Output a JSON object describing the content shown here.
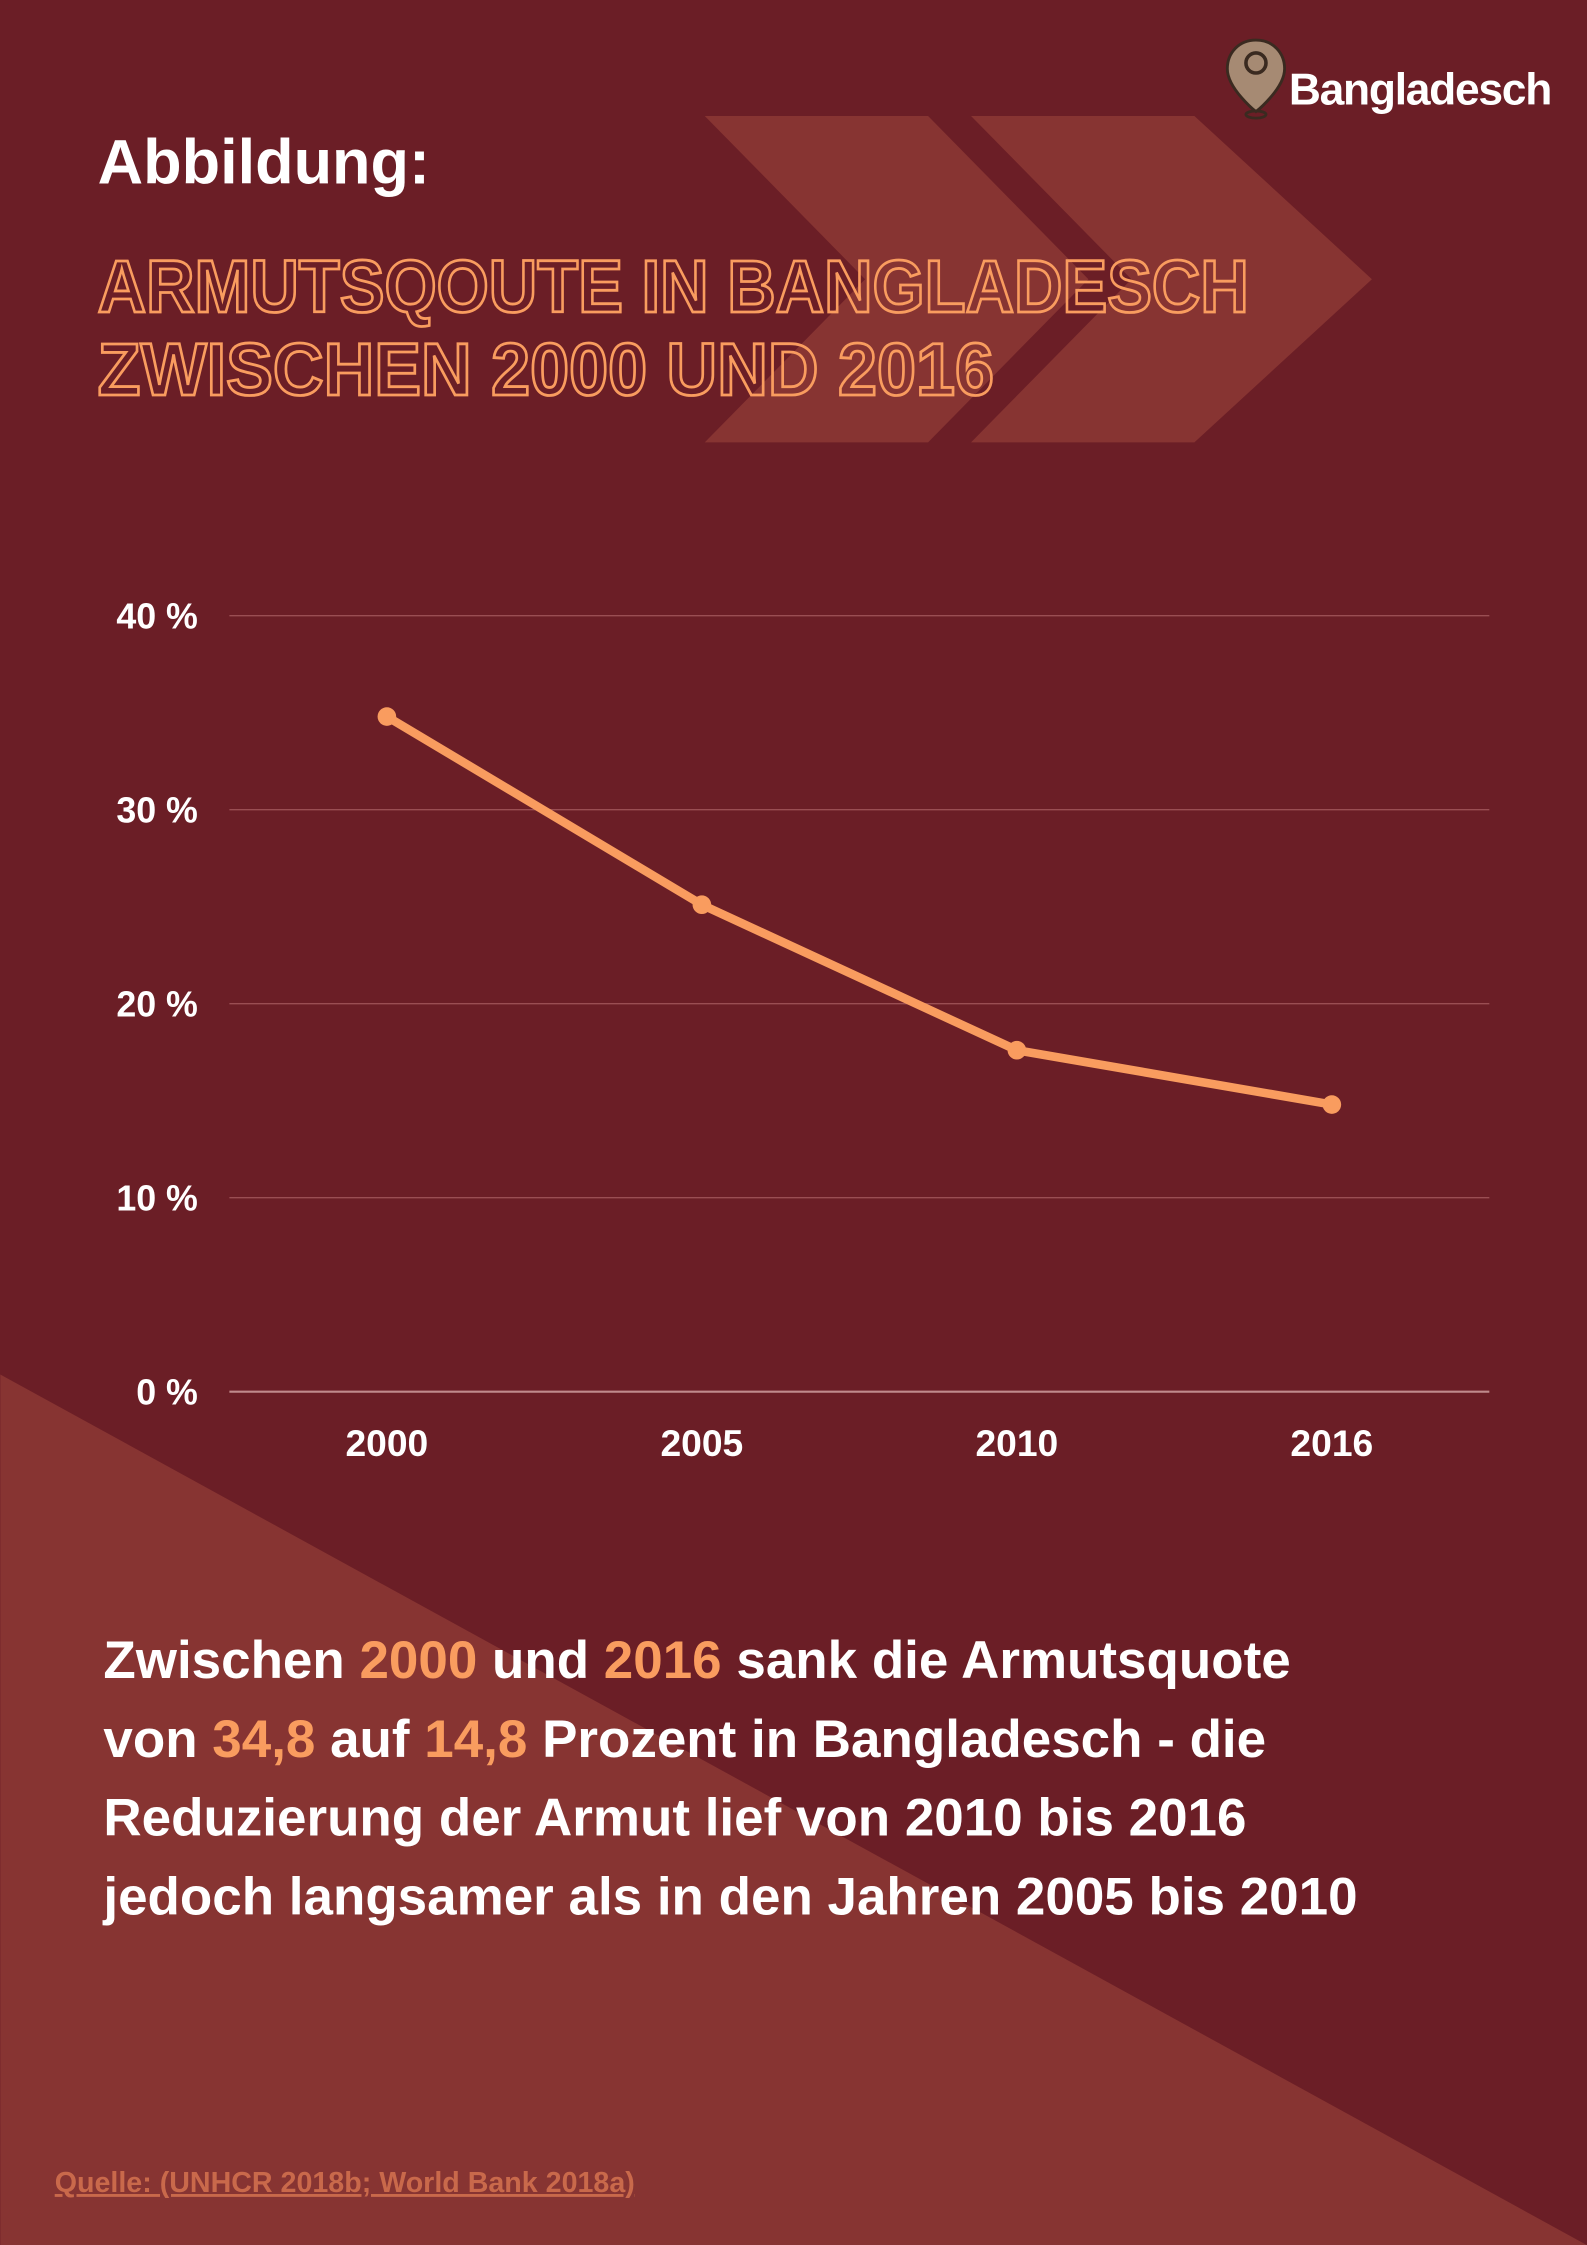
{
  "logo": {
    "label": "Bangladesch"
  },
  "header": {
    "kicker": "Abbildung:",
    "title_lines": [
      "ARMUTSQOUTE IN BANGLADESCH",
      "ZWISCHEN 2000 UND 2016"
    ]
  },
  "chart_data": {
    "type": "line",
    "categories": [
      "2000",
      "2005",
      "2010",
      "2016"
    ],
    "series": [
      {
        "color": "#f99c5f",
        "values": [
          34.8,
          25.1,
          17.6,
          14.8
        ]
      }
    ],
    "ylim": [
      0,
      40
    ],
    "yticks": [
      {
        "value": 0,
        "label": "0 %"
      },
      {
        "value": 10,
        "label": "10 %"
      },
      {
        "value": 20,
        "label": "20 %"
      },
      {
        "value": 30,
        "label": "30 %"
      },
      {
        "value": 40,
        "label": "40 %"
      }
    ],
    "grid": true
  },
  "description": {
    "lines": [
      [
        "Zwischen ",
        "2000",
        " und ",
        "2016",
        " sank die Armutsquote"
      ],
      [
        "von ",
        "34,8",
        " auf ",
        "14,8",
        " Prozent in Bangladesch - die"
      ],
      [
        "Reduzierung der Armut lief von 2010 bis 2016"
      ],
      [
        "jedoch langsamer als in den Jahren 2005 bis 2010"
      ]
    ]
  },
  "source": "Quelle: (UNHCR 2018b; World Bank 2018a)"
}
